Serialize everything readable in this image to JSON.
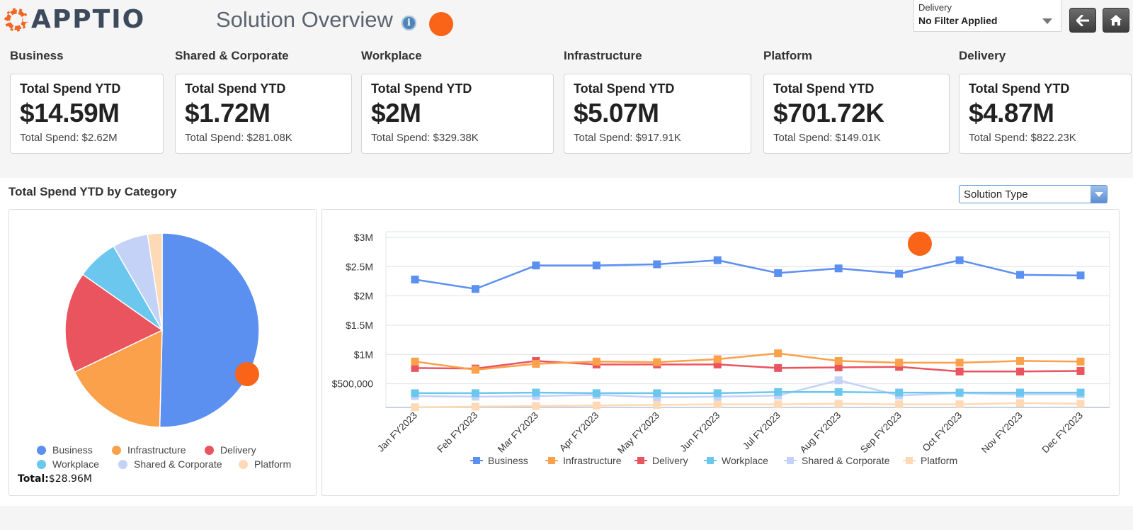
{
  "app": {
    "logo_text": "APPTIO",
    "title": "Solution Overview",
    "info_icon": "info-icon"
  },
  "filter": {
    "label": "Delivery",
    "value": "No Filter Applied"
  },
  "nav": {
    "back_icon": "arrow-left-icon",
    "home_icon": "home-icon"
  },
  "kpis": [
    {
      "section": "Business",
      "label": "Total Spend YTD",
      "value": "$14.59M",
      "sub": "Total Spend: $2.62M"
    },
    {
      "section": "Shared & Corporate",
      "label": "Total Spend YTD",
      "value": "$1.72M",
      "sub": "Total Spend: $281.08K"
    },
    {
      "section": "Workplace",
      "label": "Total Spend YTD",
      "value": "$2M",
      "sub": "Total Spend: $329.38K"
    },
    {
      "section": "Infrastructure",
      "label": "Total Spend YTD",
      "value": "$5.07M",
      "sub": "Total Spend: $917.91K"
    },
    {
      "section": "Platform",
      "label": "Total Spend YTD",
      "value": "$701.72K",
      "sub": "Total Spend: $149.01K"
    },
    {
      "section": "Delivery",
      "label": "Total Spend YTD",
      "value": "$4.87M",
      "sub": "Total Spend: $822.23K"
    }
  ],
  "category": {
    "title": "Total Spend YTD by Category",
    "dropdown_value": "Solution Type",
    "total_label": "Total:",
    "total_value": "$28.96M"
  },
  "colors": {
    "Business": "#5b8ff0",
    "Infrastructure": "#fba04b",
    "Delivery": "#e9545f",
    "Workplace": "#6bc7ed",
    "Shared & Corporate": "#c4d2f7",
    "Platform": "#fdd9b6",
    "marker": "#fa6418"
  },
  "chart_data": [
    {
      "type": "pie",
      "labels": [
        "Business",
        "Infrastructure",
        "Delivery",
        "Workplace",
        "Shared & Corporate",
        "Platform"
      ],
      "values": [
        14.59,
        5.07,
        4.87,
        2.0,
        1.72,
        0.7
      ]
    },
    {
      "type": "line",
      "categories": [
        "Jan FY2023",
        "Feb FY2023",
        "Mar FY2023",
        "Apr FY2023",
        "May FY2023",
        "Jun FY2023",
        "Jul FY2023",
        "Aug FY2023",
        "Sep FY2023",
        "Oct FY2023",
        "Nov FY2023",
        "Dec FY2023"
      ],
      "series": [
        {
          "name": "Business",
          "values": [
            2.28,
            2.12,
            2.52,
            2.52,
            2.54,
            2.61,
            2.39,
            2.47,
            2.38,
            2.61,
            2.36,
            2.35
          ]
        },
        {
          "name": "Infrastructure",
          "values": [
            0.88,
            0.74,
            0.84,
            0.88,
            0.87,
            0.92,
            1.02,
            0.89,
            0.86,
            0.86,
            0.89,
            0.88
          ]
        },
        {
          "name": "Delivery",
          "values": [
            0.77,
            0.76,
            0.89,
            0.83,
            0.83,
            0.83,
            0.77,
            0.78,
            0.79,
            0.71,
            0.71,
            0.72
          ]
        },
        {
          "name": "Workplace",
          "values": [
            0.34,
            0.34,
            0.35,
            0.34,
            0.34,
            0.34,
            0.36,
            0.36,
            0.35,
            0.35,
            0.35,
            0.35
          ]
        },
        {
          "name": "Shared & Corporate",
          "values": [
            0.29,
            0.28,
            0.29,
            0.31,
            0.27,
            0.28,
            0.3,
            0.56,
            0.3,
            0.34,
            0.32,
            0.32
          ]
        },
        {
          "name": "Platform",
          "values": [
            0.1,
            0.11,
            0.12,
            0.13,
            0.14,
            0.15,
            0.15,
            0.16,
            0.15,
            0.15,
            0.17,
            0.16
          ]
        }
      ],
      "y_ticks": [
        {
          "value": 0.5,
          "label": "$500,000"
        },
        {
          "value": 1.0,
          "label": "$1M"
        },
        {
          "value": 1.5,
          "label": "$1.5M"
        },
        {
          "value": 2.0,
          "label": "$2M"
        },
        {
          "value": 2.5,
          "label": "$2.5M"
        },
        {
          "value": 3.0,
          "label": "$3M"
        }
      ],
      "ylim": [
        0,
        3.0
      ],
      "grid": true,
      "legend_placement": "bottom"
    }
  ]
}
